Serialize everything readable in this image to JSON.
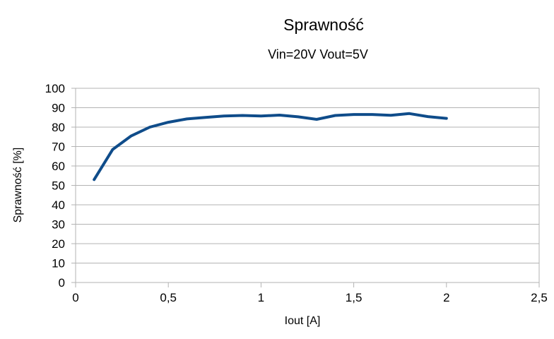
{
  "chart_data": {
    "type": "line",
    "title": "Sprawność",
    "subtitle": "Vin=20V Vout=5V",
    "xlabel": "Iout [A]",
    "ylabel": "Sprawność [%]",
    "xlim": [
      0,
      2.5
    ],
    "ylim": [
      0,
      100
    ],
    "x_ticks": [
      0,
      0.5,
      1,
      1.5,
      2,
      2.5
    ],
    "x_tick_labels": [
      "0",
      "0,5",
      "1",
      "1,5",
      "2",
      "2,5"
    ],
    "y_ticks": [
      0,
      10,
      20,
      30,
      40,
      50,
      60,
      70,
      80,
      90,
      100
    ],
    "grid": "horizontal",
    "legend": "none",
    "series": [
      {
        "name": "Sprawność",
        "color": "#0f4c8a",
        "x": [
          0.1,
          0.2,
          0.3,
          0.4,
          0.5,
          0.6,
          0.7,
          0.8,
          0.9,
          1.0,
          1.1,
          1.2,
          1.3,
          1.4,
          1.5,
          1.6,
          1.7,
          1.8,
          1.9,
          2.0
        ],
        "y": [
          53,
          68.5,
          75.5,
          80,
          82.5,
          84.2,
          85,
          85.7,
          86,
          85.7,
          86.2,
          85.3,
          84,
          86,
          86.5,
          86.5,
          86.1,
          87,
          85.4,
          84.5
        ]
      }
    ],
    "colors": {
      "background": "#ffffff",
      "grid": "#b3b3b3",
      "axis": "#b3b3b3",
      "text": "#000000",
      "series1": "#0f4c8a"
    }
  }
}
